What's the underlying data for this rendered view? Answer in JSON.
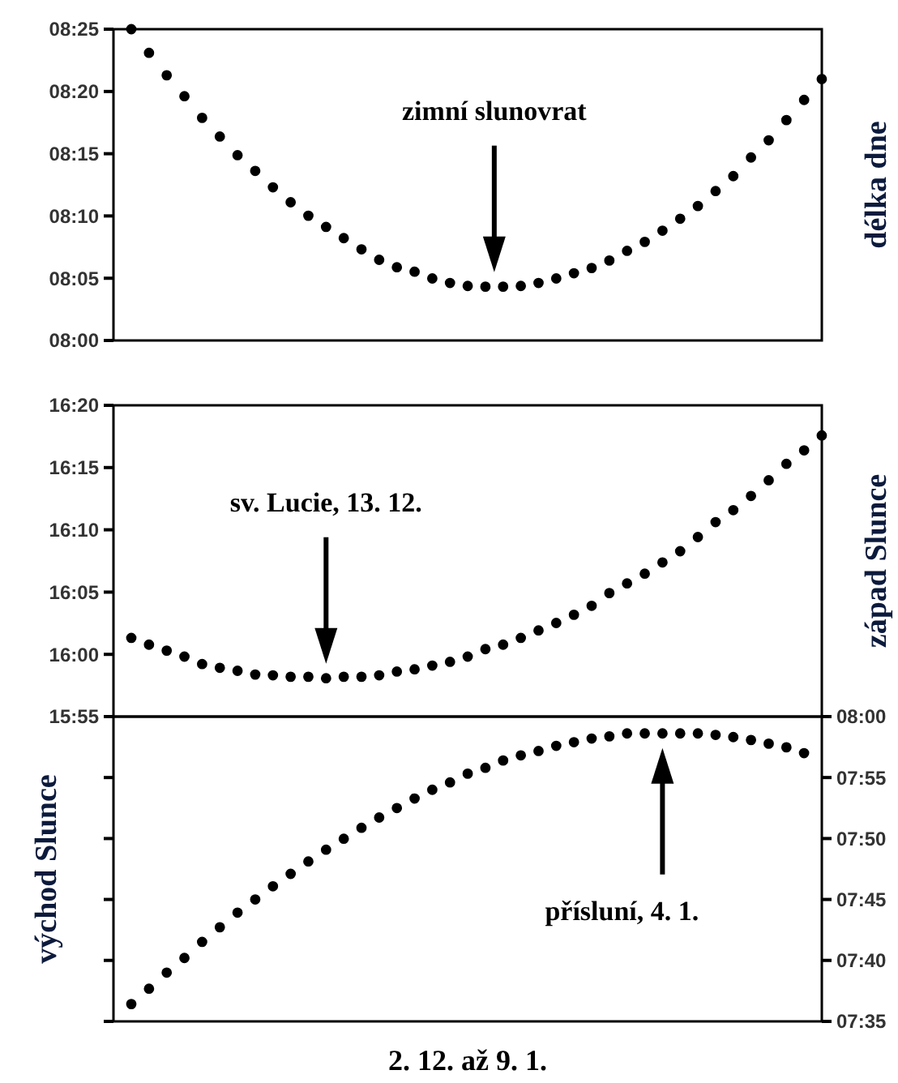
{
  "chart_data": [
    {
      "type": "line",
      "ylabel": "délka dne",
      "line_style": "dotted",
      "tick_labels": "y",
      "categories": [
        null,
        null,
        null,
        null,
        null,
        null,
        null,
        null,
        null,
        null,
        null,
        null,
        null,
        null,
        null,
        null,
        null,
        null,
        null,
        null,
        null,
        null,
        null,
        null,
        null,
        null,
        null,
        null,
        null,
        null,
        null,
        null,
        null,
        null,
        null,
        null,
        null,
        null,
        null,
        null
      ],
      "ylim": [
        8,
        8.4167
      ],
      "yticks": [
        {
          "value": 8,
          "label": "08:00"
        },
        {
          "value": 8.0833,
          "label": "08:05"
        },
        {
          "value": 8.1667,
          "label": "08:10"
        },
        {
          "value": 8.25,
          "label": "08:15"
        },
        {
          "value": 8.3333,
          "label": "08:20"
        },
        {
          "value": 8.4167,
          "label": "08:25"
        }
      ],
      "annotations": [
        "zimní slunovrat"
      ],
      "series": [
        {
          "color": "#000000",
          "values": [
            8.4167,
            8.385,
            8.355,
            8.327,
            8.298,
            8.273,
            8.248,
            8.227,
            8.205,
            8.185,
            8.167,
            8.152,
            8.137,
            8.122,
            8.108,
            8.098,
            8.092,
            8.083,
            8.077,
            8.073,
            8.072,
            8.072,
            8.073,
            8.077,
            8.083,
            8.09,
            8.097,
            8.107,
            8.12,
            8.132,
            8.147,
            8.163,
            8.18,
            8.2,
            8.22,
            8.245,
            8.268,
            8.295,
            8.322,
            8.35
          ]
        }
      ]
    },
    {
      "type": "line",
      "ylabel": "západ Slunce",
      "line_style": "dotted",
      "tick_labels": "y",
      "categories": [
        null,
        null,
        null,
        null,
        null,
        null,
        null,
        null,
        null,
        null,
        null,
        null,
        null,
        null,
        null,
        null,
        null,
        null,
        null,
        null,
        null,
        null,
        null,
        null,
        null,
        null,
        null,
        null,
        null,
        null,
        null,
        null,
        null,
        null,
        null,
        null,
        null,
        null,
        null,
        null
      ],
      "ylim": [
        15.9167,
        16.3333
      ],
      "yticks": [
        {
          "value": 15.9167,
          "label": "15:55"
        },
        {
          "value": 16,
          "label": "16:00"
        },
        {
          "value": 16.0833,
          "label": "16:05"
        },
        {
          "value": 16.1667,
          "label": "16:10"
        },
        {
          "value": 16.25,
          "label": "16:15"
        },
        {
          "value": 16.3333,
          "label": "16:20"
        }
      ],
      "annotations": [
        "sv. Lucie, 13. 12."
      ],
      "series": [
        {
          "color": "#000000",
          "values": [
            16.022,
            16.013,
            16.005,
            15.997,
            15.987,
            15.982,
            15.978,
            15.973,
            15.972,
            15.97,
            15.97,
            15.968,
            15.97,
            15.97,
            15.972,
            15.977,
            15.98,
            15.985,
            15.99,
            15.997,
            16.007,
            16.013,
            16.022,
            16.032,
            16.042,
            16.053,
            16.065,
            16.082,
            16.095,
            16.108,
            16.123,
            16.138,
            16.157,
            16.177,
            16.193,
            16.212,
            16.233,
            16.255,
            16.273,
            16.293
          ]
        }
      ]
    },
    {
      "type": "line",
      "ylabel": "východ Slunce",
      "xlabel": "2. 12. až 9. 1.",
      "line_style": "dotted",
      "tick_labels": "y",
      "categories": [
        null,
        null,
        null,
        null,
        null,
        null,
        null,
        null,
        null,
        null,
        null,
        null,
        null,
        null,
        null,
        null,
        null,
        null,
        null,
        null,
        null,
        null,
        null,
        null,
        null,
        null,
        null,
        null,
        null,
        null,
        null,
        null,
        null,
        null,
        null,
        null,
        null,
        null,
        null,
        null
      ],
      "ylim": [
        7.5833,
        8
      ],
      "yticks": [
        {
          "value": 7.5833,
          "label": "07:35"
        },
        {
          "value": 7.6667,
          "label": "07:40"
        },
        {
          "value": 7.75,
          "label": "07:45"
        },
        {
          "value": 7.8333,
          "label": "07:50"
        },
        {
          "value": 7.9167,
          "label": "07:55"
        },
        {
          "value": 8,
          "label": "08:00"
        }
      ],
      "annotations": [
        "přísluní, 4. 1."
      ],
      "series": [
        {
          "color": "#000000",
          "values": [
            7.607,
            7.628,
            7.65,
            7.67,
            7.692,
            7.712,
            7.732,
            7.75,
            7.768,
            7.785,
            7.802,
            7.818,
            7.833,
            7.848,
            7.862,
            7.875,
            7.888,
            7.9,
            7.91,
            7.922,
            7.93,
            7.94,
            7.947,
            7.953,
            7.96,
            7.965,
            7.97,
            7.973,
            7.977,
            7.977,
            7.977,
            7.977,
            7.977,
            7.975,
            7.972,
            7.968,
            7.963,
            7.958,
            7.95,
            null
          ]
        }
      ]
    }
  ]
}
